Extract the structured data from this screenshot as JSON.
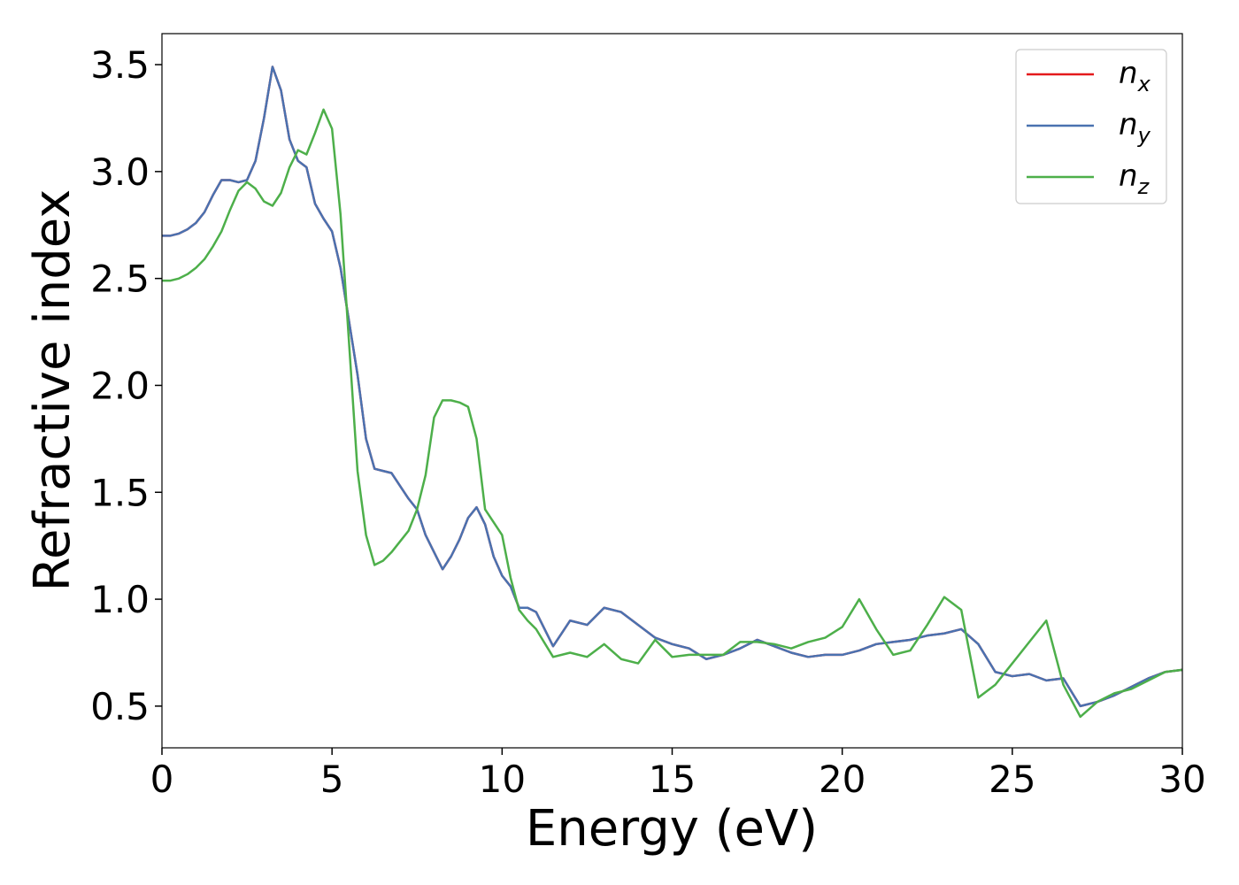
{
  "chart_data": {
    "type": "line",
    "xlabel": "Energy (eV)",
    "ylabel": "Refractive index",
    "xlim": [
      0,
      30
    ],
    "ylim": [
      0.305,
      3.645
    ],
    "xticks": [
      0,
      5,
      10,
      15,
      20,
      25,
      30
    ],
    "yticks": [
      0.5,
      {
        "value": 1,
        "label": "1.0"
      },
      1.5,
      {
        "value": 2,
        "label": "2.0"
      },
      2.5,
      {
        "value": 3,
        "label": "3.0"
      },
      3.5
    ],
    "grid": false,
    "legend": "upper right",
    "x": [
      0,
      0.25,
      0.5,
      0.75,
      1,
      1.25,
      1.5,
      1.75,
      2,
      2.25,
      2.5,
      2.75,
      3,
      3.25,
      3.5,
      3.75,
      4,
      4.25,
      4.5,
      4.75,
      5,
      5.25,
      5.5,
      5.75,
      6,
      6.25,
      6.5,
      6.75,
      7,
      7.25,
      7.5,
      7.75,
      8,
      8.25,
      8.5,
      8.75,
      9,
      9.25,
      9.5,
      9.75,
      10,
      10.25,
      10.5,
      10.75,
      11,
      11.5,
      12,
      12.5,
      13,
      13.5,
      14,
      14.5,
      15,
      15.5,
      16,
      16.5,
      17,
      17.5,
      18,
      18.5,
      19,
      19.5,
      20,
      20.5,
      21,
      21.5,
      22,
      22.5,
      23,
      23.5,
      24,
      24.5,
      25,
      25.5,
      26,
      26.5,
      27,
      27.5,
      28,
      28.5,
      29,
      29.5,
      30
    ],
    "series": [
      {
        "name": "nx",
        "color": "#e41a1c",
        "values": [
          2.7,
          2.7,
          2.71,
          2.73,
          2.76,
          2.81,
          2.89,
          2.96,
          2.96,
          2.95,
          2.96,
          3.05,
          3.25,
          3.49,
          3.38,
          3.15,
          3.05,
          3.02,
          2.85,
          2.78,
          2.72,
          2.55,
          2.3,
          2.05,
          1.75,
          1.61,
          1.6,
          1.59,
          1.53,
          1.47,
          1.42,
          1.3,
          1.22,
          1.14,
          1.2,
          1.28,
          1.38,
          1.43,
          1.35,
          1.2,
          1.11,
          1.06,
          0.96,
          0.96,
          0.94,
          0.78,
          0.9,
          0.88,
          0.96,
          0.94,
          0.88,
          0.82,
          0.79,
          0.77,
          0.72,
          0.74,
          0.77,
          0.81,
          0.78,
          0.75,
          0.73,
          0.74,
          0.74,
          0.76,
          0.79,
          0.8,
          0.81,
          0.83,
          0.84,
          0.86,
          0.79,
          0.66,
          0.64,
          0.65,
          0.62,
          0.63,
          0.5,
          0.52,
          0.55,
          0.59,
          0.63,
          0.66,
          0.67
        ]
      },
      {
        "name": "ny",
        "color": "#4a72b0",
        "values": [
          2.7,
          2.7,
          2.71,
          2.73,
          2.76,
          2.81,
          2.89,
          2.96,
          2.96,
          2.95,
          2.96,
          3.05,
          3.25,
          3.49,
          3.38,
          3.15,
          3.05,
          3.02,
          2.85,
          2.78,
          2.72,
          2.55,
          2.3,
          2.05,
          1.75,
          1.61,
          1.6,
          1.59,
          1.53,
          1.47,
          1.42,
          1.3,
          1.22,
          1.14,
          1.2,
          1.28,
          1.38,
          1.43,
          1.35,
          1.2,
          1.11,
          1.06,
          0.96,
          0.96,
          0.94,
          0.78,
          0.9,
          0.88,
          0.96,
          0.94,
          0.88,
          0.82,
          0.79,
          0.77,
          0.72,
          0.74,
          0.77,
          0.81,
          0.78,
          0.75,
          0.73,
          0.74,
          0.74,
          0.76,
          0.79,
          0.8,
          0.81,
          0.83,
          0.84,
          0.86,
          0.79,
          0.66,
          0.64,
          0.65,
          0.62,
          0.63,
          0.5,
          0.52,
          0.55,
          0.59,
          0.63,
          0.66,
          0.67
        ]
      },
      {
        "name": "nz",
        "color": "#4daf4a",
        "values": [
          2.49,
          2.49,
          2.5,
          2.52,
          2.55,
          2.59,
          2.65,
          2.72,
          2.82,
          2.91,
          2.95,
          2.92,
          2.86,
          2.84,
          2.9,
          3.02,
          3.1,
          3.08,
          3.18,
          3.29,
          3.2,
          2.8,
          2.2,
          1.6,
          1.3,
          1.16,
          1.18,
          1.22,
          1.27,
          1.32,
          1.42,
          1.58,
          1.85,
          1.93,
          1.93,
          1.92,
          1.9,
          1.75,
          1.42,
          1.36,
          1.3,
          1.1,
          0.95,
          0.9,
          0.86,
          0.73,
          0.75,
          0.73,
          0.79,
          0.72,
          0.7,
          0.81,
          0.73,
          0.74,
          0.74,
          0.74,
          0.8,
          0.8,
          0.79,
          0.77,
          0.8,
          0.82,
          0.87,
          1.0,
          0.86,
          0.74,
          0.76,
          0.88,
          1.01,
          0.95,
          0.54,
          0.6,
          0.7,
          0.8,
          0.9,
          0.6,
          0.45,
          0.52,
          0.56,
          0.58,
          0.62,
          0.66,
          0.67
        ]
      }
    ]
  }
}
